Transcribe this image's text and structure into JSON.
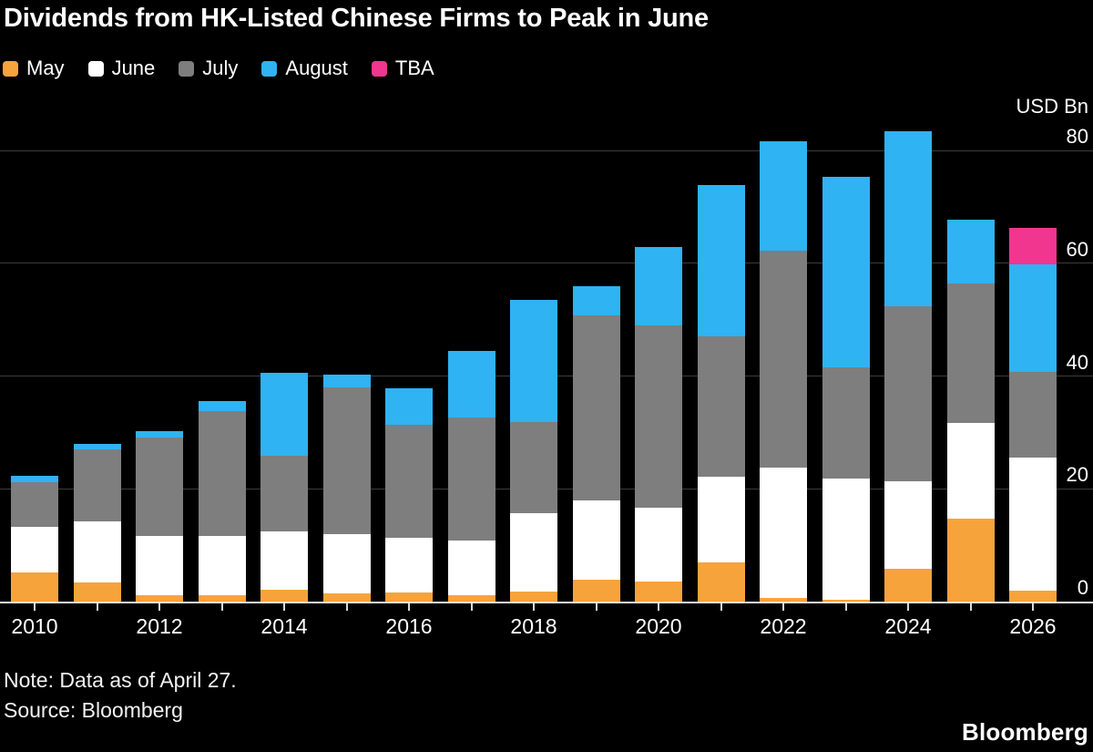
{
  "title": "Dividends from HK-Listed Chinese Firms to Peak in June",
  "legend": [
    {
      "label": "May",
      "color": "#F7A33C"
    },
    {
      "label": "June",
      "color": "#FFFFFF"
    },
    {
      "label": "July",
      "color": "#7E7E7E"
    },
    {
      "label": "August",
      "color": "#2FB3F2"
    },
    {
      "label": "TBA",
      "color": "#F0368F"
    }
  ],
  "axis": {
    "unit_label": "USD Bn",
    "y_ticks": [
      80,
      60,
      40,
      20,
      0
    ],
    "x_labels": [
      "2010",
      "2012",
      "2014",
      "2016",
      "2018",
      "2020",
      "2022",
      "2024",
      "2026"
    ]
  },
  "notes": {
    "note": "Note: Data as of April 27.",
    "source": "Source: Bloomberg"
  },
  "branding": "Bloomberg",
  "chart_data": {
    "type": "bar",
    "stacked": true,
    "title": "Dividends from HK-Listed Chinese Firms to Peak in June",
    "ylabel": "USD Bn",
    "ylim": [
      0,
      80
    ],
    "grid": "horizontal",
    "legend_position": "top-left",
    "categories": [
      2010,
      2011,
      2012,
      2013,
      2014,
      2015,
      2016,
      2017,
      2018,
      2019,
      2020,
      2021,
      2022,
      2023,
      2024,
      2025,
      2026
    ],
    "series": [
      {
        "name": "May",
        "color": "#F7A33C",
        "values": [
          5.2,
          3.4,
          1.1,
          1.2,
          2.1,
          1.5,
          1.6,
          1.1,
          1.7,
          3.9,
          3.5,
          7.0,
          0.6,
          0.4,
          5.8,
          14.7,
          2.0
        ]
      },
      {
        "name": "June",
        "color": "#FFFFFF",
        "values": [
          8.0,
          10.9,
          10.6,
          10.4,
          10.3,
          10.4,
          9.7,
          9.8,
          13.9,
          14.0,
          13.2,
          15.1,
          23.1,
          21.5,
          15.5,
          17.0,
          23.5
        ]
      },
      {
        "name": "July",
        "color": "#7E7E7E",
        "values": [
          7.9,
          12.7,
          17.4,
          22.2,
          13.5,
          26.1,
          20.1,
          21.7,
          16.3,
          32.8,
          32.2,
          24.9,
          38.5,
          19.6,
          31.0,
          24.7,
          15.2
        ]
      },
      {
        "name": "August",
        "color": "#2FB3F2",
        "values": [
          1.2,
          0.9,
          1.2,
          1.7,
          14.7,
          2.3,
          6.4,
          11.9,
          21.6,
          5.2,
          13.9,
          26.8,
          19.4,
          33.8,
          31.1,
          11.3,
          19.1
        ]
      },
      {
        "name": "TBA",
        "color": "#F0368F",
        "values": [
          0,
          0,
          0,
          0,
          0,
          0,
          0,
          0,
          0,
          0,
          0,
          0,
          0,
          0,
          0,
          0,
          6.4
        ]
      }
    ]
  }
}
